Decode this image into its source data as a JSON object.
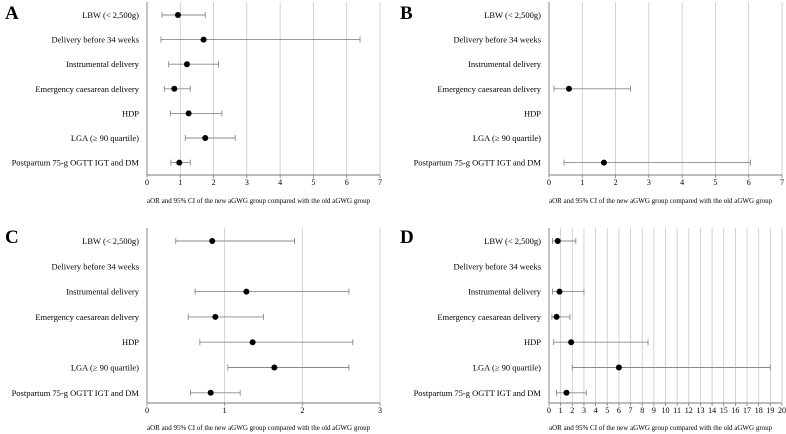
{
  "figure": {
    "x_caption": "aOR and 95% CI of the new aGWG group compared with the old aGWG group"
  },
  "chart_data": [
    {
      "type": "forest",
      "panel": "A",
      "xlim": [
        0,
        7
      ],
      "ticks": [
        0,
        1,
        2,
        3,
        4,
        5,
        6,
        7
      ],
      "xlabel": "aOR and 95% CI of the new aGWG group compared with the old aGWG group",
      "categories": [
        "LBW (< 2,500g)",
        "Delivery before 34 weeks",
        "Instrumental delivery",
        "Emergency caesarean delivery",
        "HDP",
        "LGA (≥ 90 quartile)",
        "Postpartum 75-g OGTT IGT and DM"
      ],
      "estimates": [
        {
          "or": 0.93,
          "lo": 0.45,
          "hi": 1.75
        },
        {
          "or": 1.7,
          "lo": 0.42,
          "hi": 6.4
        },
        {
          "or": 1.2,
          "lo": 0.65,
          "hi": 2.15
        },
        {
          "or": 0.82,
          "lo": 0.52,
          "hi": 1.3
        },
        {
          "or": 1.25,
          "lo": 0.7,
          "hi": 2.25
        },
        {
          "or": 1.75,
          "lo": 1.15,
          "hi": 2.65
        },
        {
          "or": 0.97,
          "lo": 0.72,
          "hi": 1.3
        }
      ]
    },
    {
      "type": "forest",
      "panel": "B",
      "xlim": [
        0,
        7
      ],
      "ticks": [
        0,
        1,
        2,
        3,
        4,
        5,
        6,
        7
      ],
      "xlabel": "aOR and 95% CI of the new aGWG group compared with the old aGWG group",
      "categories": [
        "LBW (< 2,500g)",
        "Delivery before 34 weeks",
        "Instrumental delivery",
        "Emergency caesarean delivery",
        "HDP",
        "LGA (≥ 90 quartile)",
        "Postpartum 75-g OGTT IGT and DM"
      ],
      "estimates": [
        null,
        null,
        null,
        {
          "or": 0.6,
          "lo": 0.15,
          "hi": 2.45
        },
        null,
        null,
        {
          "or": 1.65,
          "lo": 0.45,
          "hi": 6.05
        }
      ]
    },
    {
      "type": "forest",
      "panel": "C",
      "xlim": [
        0,
        3
      ],
      "ticks": [
        0,
        1,
        2,
        3
      ],
      "xlabel": "aOR and 95% CI of the new aGWG group compared with the old aGWG group",
      "categories": [
        "LBW (< 2,500g)",
        "Delivery before 34 weeks",
        "Instrumental delivery",
        "Emergency caesarean delivery",
        "HDP",
        "LGA (≥ 90 quartile)",
        "Postpartum 75-g OGTT IGT and DM"
      ],
      "estimates": [
        {
          "or": 0.84,
          "lo": 0.37,
          "hi": 1.9
        },
        null,
        {
          "or": 1.28,
          "lo": 0.62,
          "hi": 2.6
        },
        {
          "or": 0.88,
          "lo": 0.53,
          "hi": 1.5
        },
        {
          "or": 1.36,
          "lo": 0.68,
          "hi": 2.65
        },
        {
          "or": 1.64,
          "lo": 1.04,
          "hi": 2.6
        },
        {
          "or": 0.82,
          "lo": 0.56,
          "hi": 1.2
        }
      ]
    },
    {
      "type": "forest",
      "panel": "D",
      "xlim": [
        0,
        20
      ],
      "ticks": [
        0,
        1,
        2,
        3,
        4,
        5,
        6,
        7,
        8,
        9,
        10,
        11,
        12,
        13,
        14,
        15,
        16,
        17,
        18,
        19,
        20
      ],
      "xlabel": "aOR and 95% CI of the new aGWG group compared with the old aGWG group",
      "categories": [
        "LBW (< 2,500g)",
        "Delivery before 34 weeks",
        "Instrumental delivery",
        "Emergency caesarean delivery",
        "HDP",
        "LGA (≥ 90 quartile)",
        "Postpartum 75-g OGTT IGT and DM"
      ],
      "estimates": [
        {
          "or": 0.75,
          "lo": 0.3,
          "hi": 2.3
        },
        null,
        {
          "or": 0.9,
          "lo": 0.3,
          "hi": 3.0
        },
        {
          "or": 0.65,
          "lo": 0.25,
          "hi": 1.8
        },
        {
          "or": 1.9,
          "lo": 0.4,
          "hi": 8.5
        },
        {
          "or": 6.0,
          "lo": 2.0,
          "hi": 19.0
        },
        {
          "or": 1.5,
          "lo": 0.65,
          "hi": 3.2
        }
      ]
    }
  ]
}
